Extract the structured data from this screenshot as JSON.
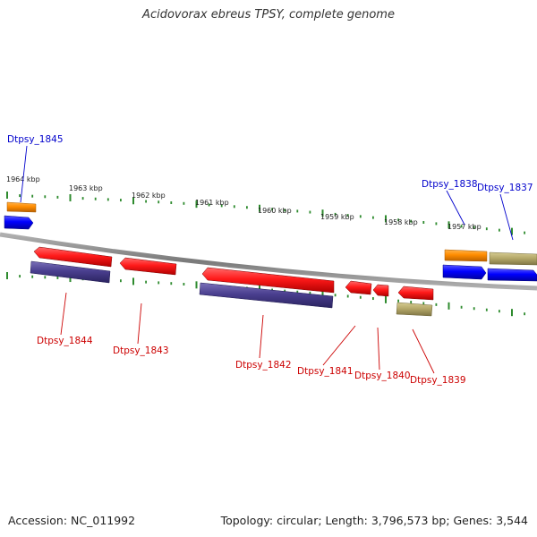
{
  "title": "Acidovorax ebreus TPSY, complete genome",
  "footer": {
    "accession_label": "Accession:",
    "accession": "NC_011992",
    "topology_label": "Topology:",
    "topology": "circular",
    "length_label": "Length:",
    "length": "3,796,573 bp",
    "genes_label": "Genes:",
    "genes": "3,544"
  },
  "kbp_ticks": [
    "1964 kbp",
    "1963 kbp",
    "1962 kbp",
    "1961 kbp",
    "1960 kbp",
    "1959 kbp",
    "1958 kbp",
    "1957 kbp"
  ],
  "genes_forward": [
    {
      "label": "Dtpsy_1845",
      "color": "#0000cc"
    },
    {
      "label": "Dtpsy_1838",
      "color": "#0000cc"
    },
    {
      "label": "Dtpsy_1837",
      "color": "#0000cc"
    }
  ],
  "genes_reverse": [
    {
      "label": "Dtpsy_1844",
      "color": "#cc0000"
    },
    {
      "label": "Dtpsy_1843",
      "color": "#cc0000"
    },
    {
      "label": "Dtpsy_1842",
      "color": "#cc0000"
    },
    {
      "label": "Dtpsy_1841",
      "color": "#cc0000"
    },
    {
      "label": "Dtpsy_1840",
      "color": "#cc0000"
    },
    {
      "label": "Dtpsy_1839",
      "color": "#cc0000"
    }
  ],
  "colors": {
    "backbone": "#808080",
    "tick": "#2e8b2e",
    "cds_forward": "#0000ff",
    "cds_reverse": "#ff0000",
    "gene_feature": "#4a3f8f",
    "orange_feature": "#ff8c00",
    "khaki_feature": "#b5a96a"
  }
}
